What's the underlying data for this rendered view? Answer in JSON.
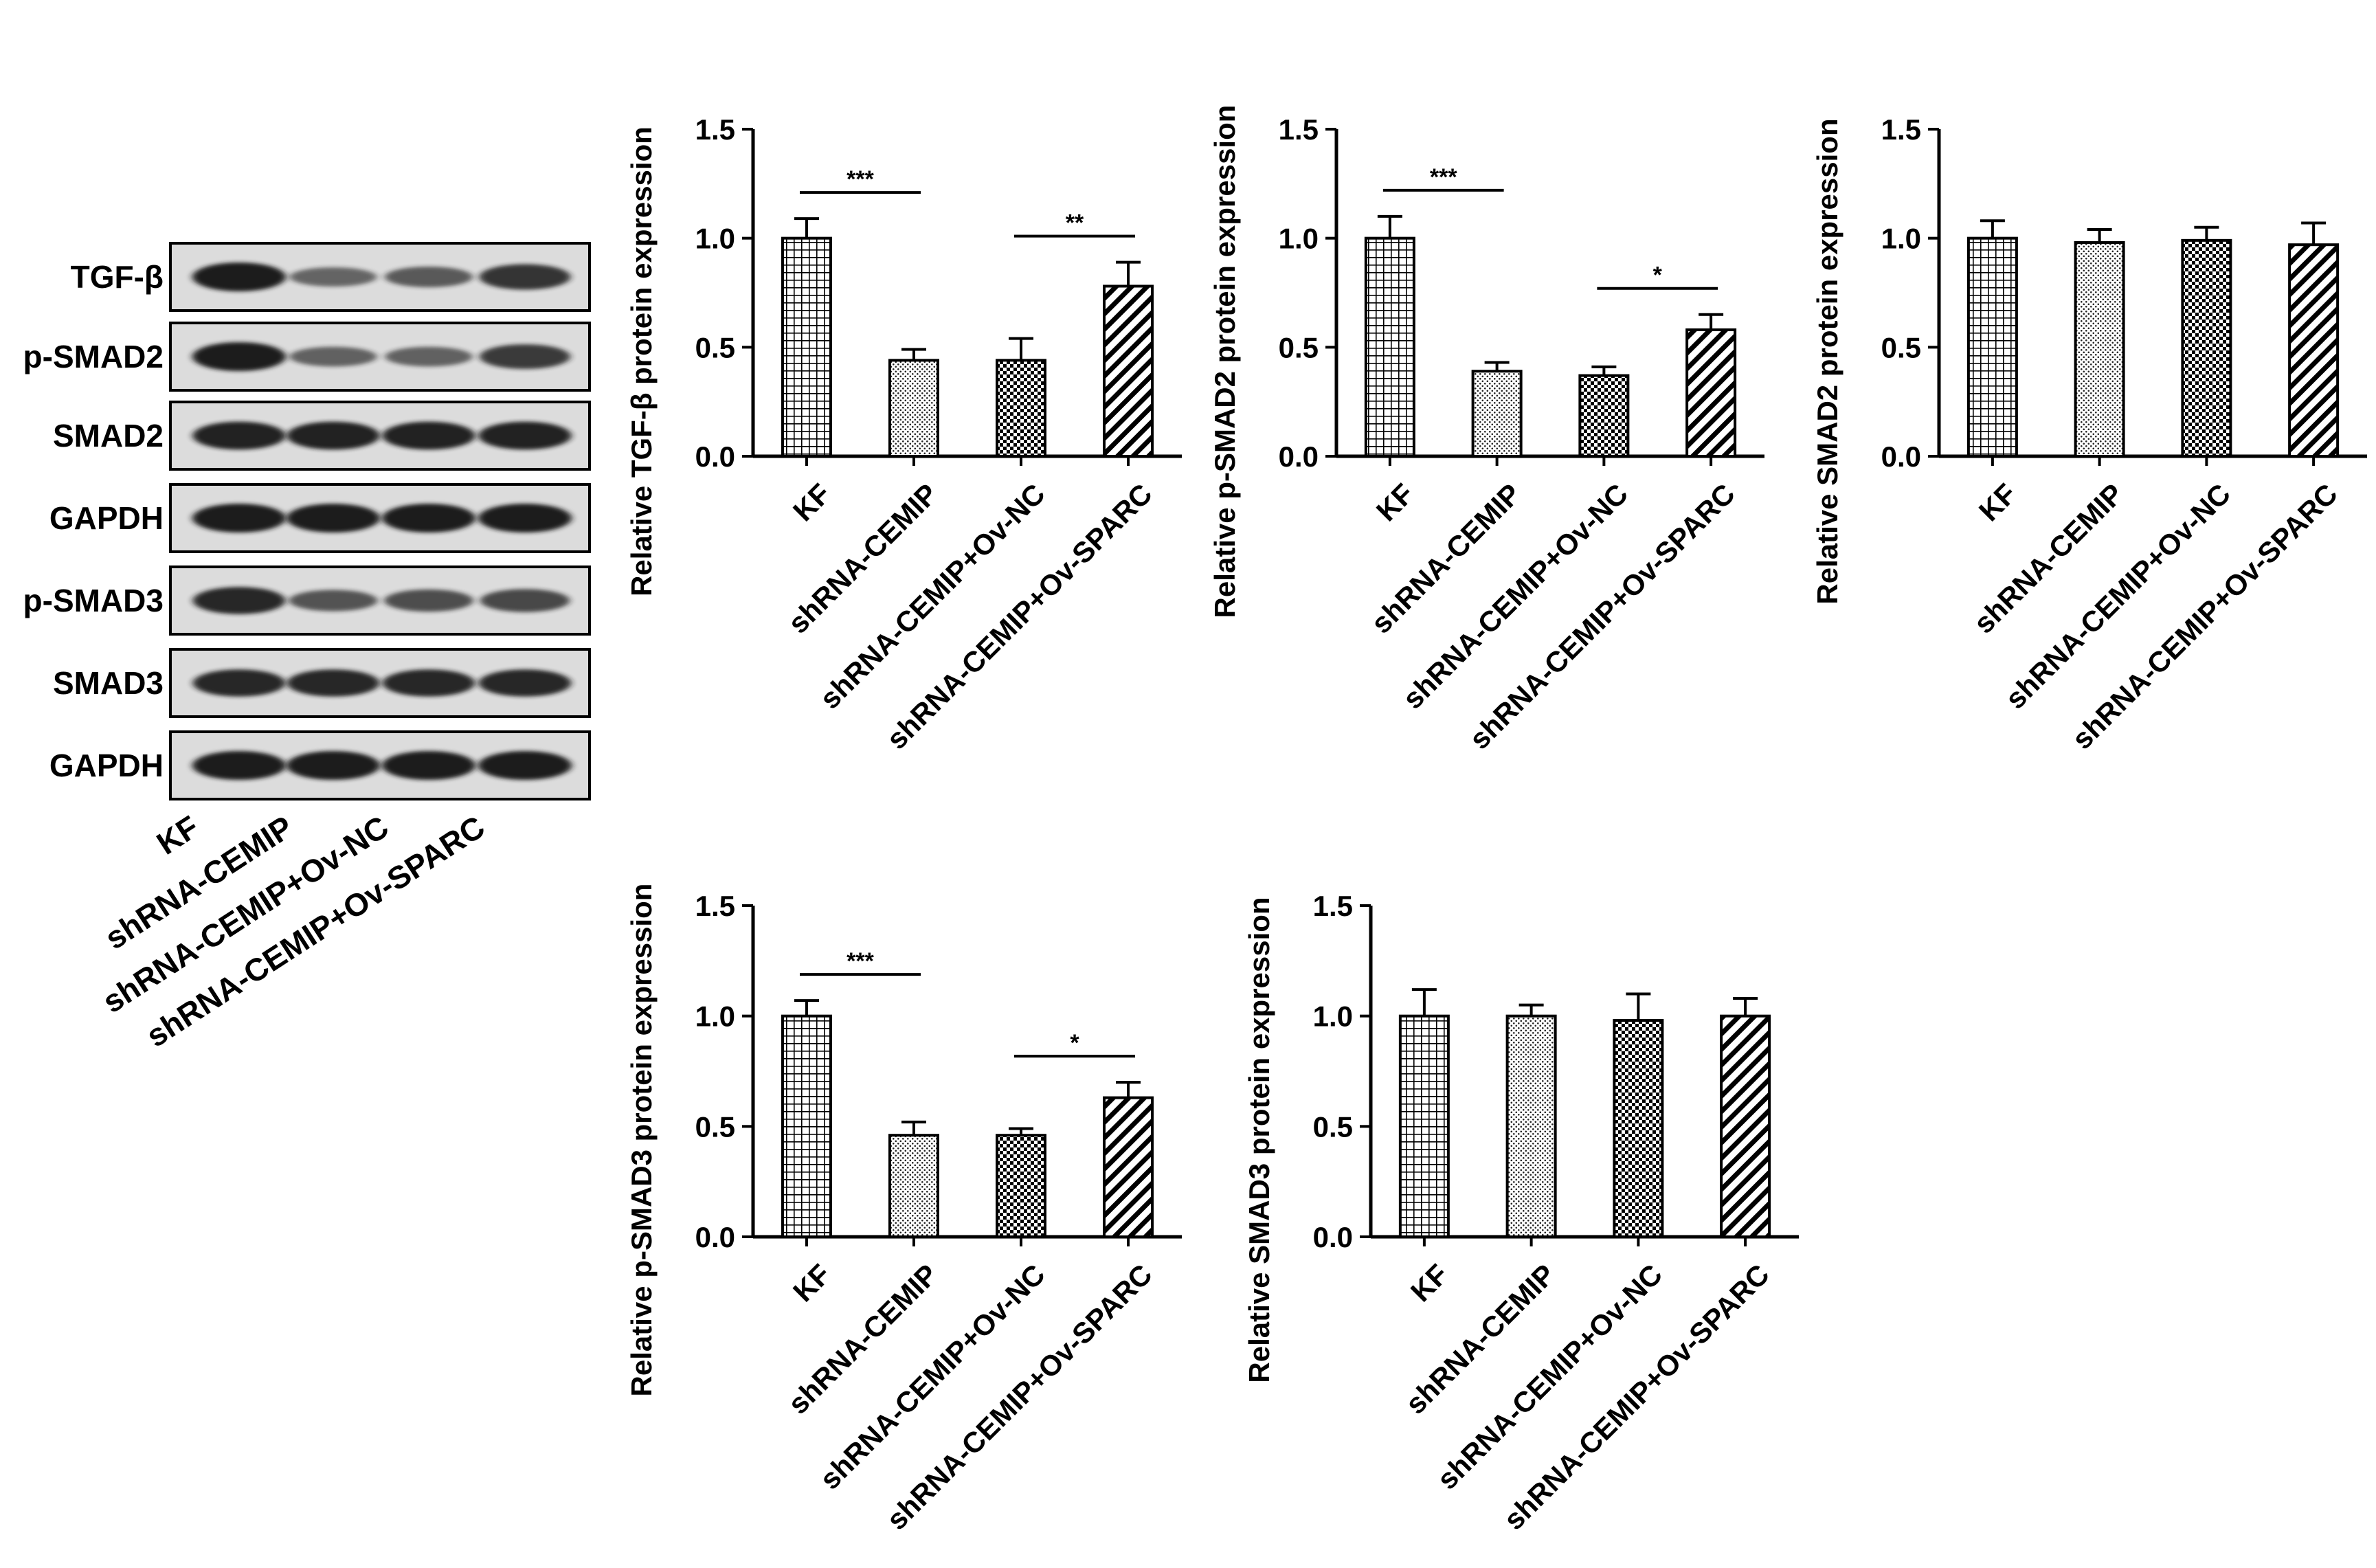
{
  "blot": {
    "rows": [
      "TGF-β",
      "p-SMAD2",
      "SMAD2",
      "GAPDH",
      "p-SMAD3",
      "SMAD3",
      "GAPDH"
    ],
    "lanes": [
      "KF",
      "shRNA-CEMIP",
      "shRNA-CEMIP+Ov-NC",
      "shRNA-CEMIP+Ov-SPARC"
    ],
    "band_intensity": [
      [
        1.0,
        0.42,
        0.5,
        0.8
      ],
      [
        1.0,
        0.45,
        0.45,
        0.75
      ],
      [
        0.95,
        0.95,
        0.95,
        0.95
      ],
      [
        1.0,
        1.0,
        1.0,
        1.0
      ],
      [
        0.9,
        0.55,
        0.6,
        0.65
      ],
      [
        0.9,
        0.9,
        0.9,
        0.9
      ],
      [
        1.0,
        1.0,
        1.0,
        1.0
      ]
    ]
  },
  "colors": {
    "ink": "#000000",
    "band": "#1a1a1a",
    "blot_bg": "#dcdcdc"
  },
  "patterns": [
    "grid-hatch",
    "dotted-fill",
    "checker-fill",
    "diagonal-hatch"
  ],
  "chart_data": [
    {
      "type": "bar",
      "categories": [
        "KF",
        "shRNA-CEMIP",
        "shRNA-CEMIP+Ov-NC",
        "shRNA-CEMIP+Ov-SPARC"
      ],
      "values": [
        1.0,
        0.44,
        0.44,
        0.78
      ],
      "errors": [
        0.09,
        0.05,
        0.1,
        0.11
      ],
      "ylabel": "Relative TGF-β protein expression",
      "ylim": [
        0,
        1.5
      ],
      "yticks": [
        "0.0",
        "0.5",
        "1.0",
        "1.5"
      ],
      "significance": [
        {
          "from": 0,
          "to": 1,
          "label": "***"
        },
        {
          "from": 2,
          "to": 3,
          "label": "**"
        }
      ]
    },
    {
      "type": "bar",
      "categories": [
        "KF",
        "shRNA-CEMIP",
        "shRNA-CEMIP+Ov-NC",
        "shRNA-CEMIP+Ov-SPARC"
      ],
      "values": [
        1.0,
        0.39,
        0.37,
        0.58
      ],
      "errors": [
        0.1,
        0.04,
        0.04,
        0.07
      ],
      "ylabel": "Relative p-SMAD2 protein expression",
      "ylim": [
        0,
        1.5
      ],
      "yticks": [
        "0.0",
        "0.5",
        "1.0",
        "1.5"
      ],
      "significance": [
        {
          "from": 0,
          "to": 1,
          "label": "***"
        },
        {
          "from": 2,
          "to": 3,
          "label": "*"
        }
      ]
    },
    {
      "type": "bar",
      "categories": [
        "KF",
        "shRNA-CEMIP",
        "shRNA-CEMIP+Ov-NC",
        "shRNA-CEMIP+Ov-SPARC"
      ],
      "values": [
        1.0,
        0.98,
        0.99,
        0.97
      ],
      "errors": [
        0.08,
        0.06,
        0.06,
        0.1
      ],
      "ylabel": "Relative SMAD2 protein expression",
      "ylim": [
        0,
        1.5
      ],
      "yticks": [
        "0.0",
        "0.5",
        "1.0",
        "1.5"
      ],
      "significance": []
    },
    {
      "type": "bar",
      "categories": [
        "KF",
        "shRNA-CEMIP",
        "shRNA-CEMIP+Ov-NC",
        "shRNA-CEMIP+Ov-SPARC"
      ],
      "values": [
        1.0,
        0.46,
        0.46,
        0.63
      ],
      "errors": [
        0.07,
        0.06,
        0.03,
        0.07
      ],
      "ylabel": "Relative p-SMAD3 protein expression",
      "ylim": [
        0,
        1.5
      ],
      "yticks": [
        "0.0",
        "0.5",
        "1.0",
        "1.5"
      ],
      "significance": [
        {
          "from": 0,
          "to": 1,
          "label": "***"
        },
        {
          "from": 2,
          "to": 3,
          "label": "*"
        }
      ]
    },
    {
      "type": "bar",
      "categories": [
        "KF",
        "shRNA-CEMIP",
        "shRNA-CEMIP+Ov-NC",
        "shRNA-CEMIP+Ov-SPARC"
      ],
      "values": [
        1.0,
        1.0,
        0.98,
        1.0
      ],
      "errors": [
        0.12,
        0.05,
        0.12,
        0.08
      ],
      "ylabel": "Relative SMAD3 protein expression",
      "ylim": [
        0,
        1.5
      ],
      "yticks": [
        "0.0",
        "0.5",
        "1.0",
        "1.5"
      ],
      "significance": []
    }
  ]
}
